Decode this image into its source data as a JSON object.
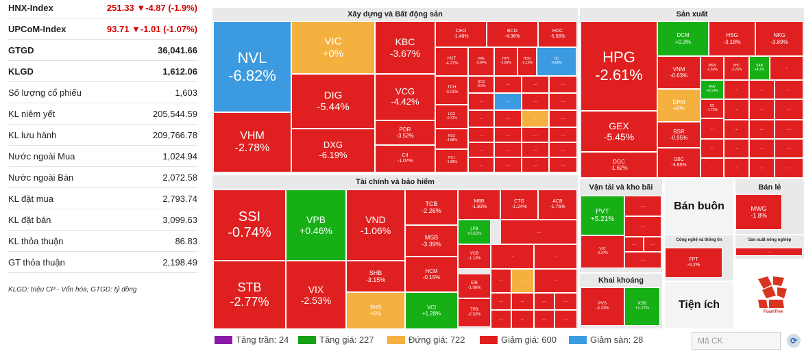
{
  "summary": [
    {
      "label": "HNX-Index",
      "value": "251.33 ▼-4.87 (-1.9%)",
      "bold": true,
      "red": true
    },
    {
      "label": "UPCoM-Index",
      "value": "93.71 ▼-1.01 (-1.07%)",
      "bold": true,
      "red": true
    },
    {
      "label": "GTGD",
      "value": "36,041.66",
      "bold": true,
      "red": false
    },
    {
      "label": "KLGD",
      "value": "1,612.06",
      "bold": true,
      "red": false
    },
    {
      "label": "Số lượng cổ phiếu",
      "value": "1,603",
      "bold": false,
      "red": false
    },
    {
      "label": "KL niêm yết",
      "value": "205,544.59",
      "bold": false,
      "red": false
    },
    {
      "label": "KL lưu hành",
      "value": "209,766.78",
      "bold": false,
      "red": false
    },
    {
      "label": "Nước ngoài Mua",
      "value": "1,024.94",
      "bold": false,
      "red": false
    },
    {
      "label": "Nước ngoài Bán",
      "value": "2,072.58",
      "bold": false,
      "red": false
    },
    {
      "label": "KL đặt mua",
      "value": "2,793.74",
      "bold": false,
      "red": false
    },
    {
      "label": "KL đặt bán",
      "value": "3,099.63",
      "bold": false,
      "red": false
    },
    {
      "label": "KL thỏa thuận",
      "value": "86.83",
      "bold": false,
      "red": false
    },
    {
      "label": "GT thỏa thuận",
      "value": "2,198.49",
      "bold": false,
      "red": false
    }
  ],
  "note": "KLGD: triệu CP - Vốn hóa, GTGD: tỷ đồng",
  "sectors": {
    "real_estate": "Xây dựng và Bất động sản",
    "production": "Sản xuất",
    "finance": "Tài chính và bảo hiểm",
    "transport": "Vận tải và kho bãi",
    "retail": "Bán lẻ",
    "wholesale": "Bán buôn",
    "tech": "Công nghệ và thông tin",
    "agri": "Sản xuất nông nghiệp",
    "mining": "Khai khoáng",
    "utilities": "Tiện ích"
  },
  "stocks": {
    "NVL": "-6.82%",
    "VIC": "+0%",
    "KBC": "-3.67%",
    "DIG": "-5.44%",
    "VCG": "-4.42%",
    "VHM": "-2.78%",
    "DXG": "-6.19%",
    "PDR": "-3.52%",
    "CII": "-1.07%",
    "CEO": "-1.48%",
    "BCG": "-4.96%",
    "HDC": "-5.56%",
    "HUT": "-4.27%",
    "VRE": "-3.04%",
    "HHV": "-1.89%",
    "HDG": "-2.15%",
    "IJC": "-6.89%",
    "TCH": "-3.01%",
    "SCS": "-0.6%",
    "LCG": "-0.72%",
    "NLG": "-4.88%",
    "PC1": "-1.98%",
    "HPG": "-2.61%",
    "GEX": "-5.45%",
    "DGC": "-1.62%",
    "DCM": "+0.3%",
    "HSG": "-3.18%",
    "NKG": "-3.89%",
    "VNM": "-0.63%",
    "MSN": "-2.69%",
    "VHC": "-3.26%",
    "SAB": "+4.3%",
    "DPM": "+0%",
    "BSR": "-0.95%",
    "DBC": "-3.85%",
    "ANV": "+6.14%",
    "IDI": "-1.73%",
    "SSI": "-0.74%",
    "VPB": "+0.46%",
    "VND": "-1.06%",
    "STB": "-2.77%",
    "VIX": "-2.53%",
    "SHB": "-3.15%",
    "SHS": "+0%",
    "TCB": "-2.26%",
    "MSB": "-3.39%",
    "HCM": "-0.15%",
    "VCI": "+1.28%",
    "MBB": "-1.83%",
    "CTG": "-1.24%",
    "ACB": "-1.76%",
    "LPB": "+0.62%",
    "VCB": "-1.12%",
    "EIB": "-1.96%",
    "TPB": "-2.32%",
    "PVT": "+5.21%",
    "VJC": "-2.37%",
    "FPT": "-0.2%",
    "MWG": "-1.8%",
    "PVS": "-3.23%",
    "KSB": "+1.27%"
  },
  "more": "...",
  "legend": [
    {
      "label": "Tăng trần: 24",
      "color": "#8b1aa6"
    },
    {
      "label": "Tăng giá: 227",
      "color": "#16a116"
    },
    {
      "label": "Đứng giá: 722",
      "color": "#f5b13f"
    },
    {
      "label": "Giảm giá: 600",
      "color": "#e02020"
    },
    {
      "label": "Giảm sàn: 28",
      "color": "#3c9be0"
    }
  ],
  "search": {
    "placeholder": "Mã CK"
  },
  "foamtree": "FoamTree"
}
